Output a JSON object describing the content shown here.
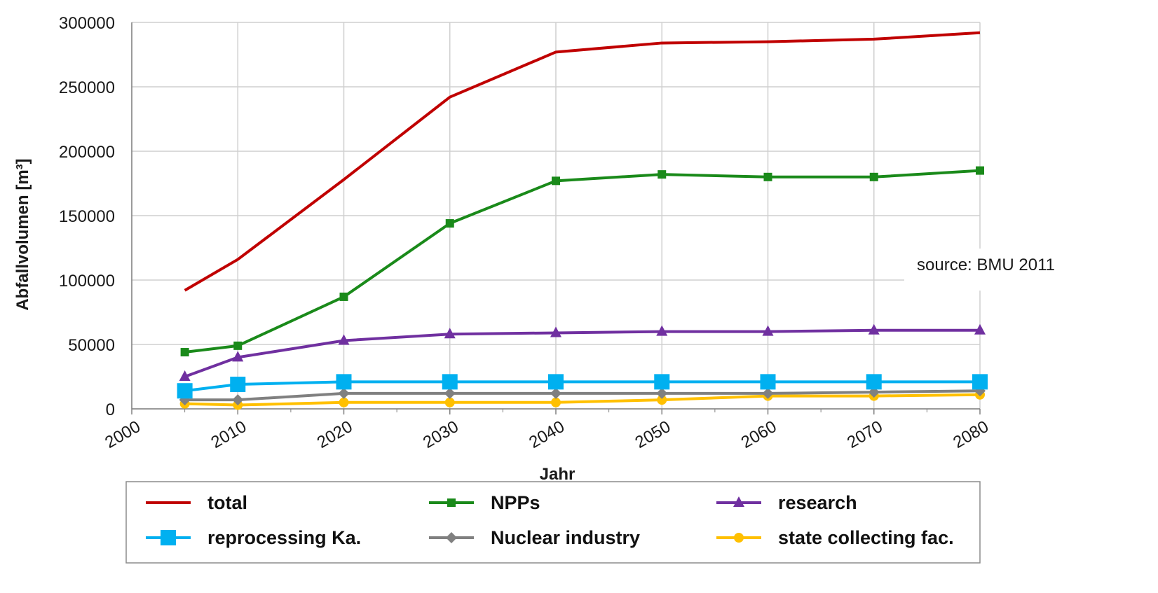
{
  "chart_data": {
    "type": "line",
    "title": "",
    "xlabel": "Jahr",
    "ylabel": "Abfallvolumen [m³]",
    "xlim": [
      2000,
      2080
    ],
    "ylim": [
      0,
      300000
    ],
    "x_ticks": [
      "2000",
      "2010",
      "2020",
      "2030",
      "2040",
      "2050",
      "2060",
      "2070",
      "2080"
    ],
    "y_ticks": [
      "0",
      "50000",
      "100000",
      "150000",
      "200000",
      "250000",
      "300000"
    ],
    "grid": true,
    "legend_position": "bottom",
    "x": [
      2005,
      2010,
      2020,
      2030,
      2040,
      2050,
      2060,
      2070,
      2080
    ],
    "series": [
      {
        "name": "total",
        "color": "#c00000",
        "marker": "none",
        "values": [
          92000,
          116000,
          178000,
          242000,
          277000,
          284000,
          285000,
          287000,
          292000
        ]
      },
      {
        "name": "NPPs",
        "color": "#1a8a1a",
        "marker": "square-small",
        "values": [
          44000,
          49000,
          87000,
          144000,
          177000,
          182000,
          180000,
          180000,
          185000
        ]
      },
      {
        "name": "research",
        "color": "#7030a0",
        "marker": "triangle",
        "values": [
          25000,
          40000,
          53000,
          58000,
          59000,
          60000,
          60000,
          61000,
          61000
        ]
      },
      {
        "name": "reprocessing Ka.",
        "color": "#00b0f0",
        "marker": "square-large",
        "values": [
          14000,
          19000,
          21000,
          21000,
          21000,
          21000,
          21000,
          21000,
          21000
        ]
      },
      {
        "name": "Nuclear industry",
        "color": "#808080",
        "marker": "diamond",
        "values": [
          7000,
          7000,
          12000,
          12000,
          12000,
          12000,
          12000,
          13000,
          14000
        ]
      },
      {
        "name": "state collecting fac.",
        "color": "#ffc000",
        "marker": "circle",
        "values": [
          4000,
          3000,
          5000,
          5000,
          5000,
          7000,
          10000,
          10000,
          11000
        ]
      }
    ]
  },
  "source_note": "source: BMU 2011"
}
